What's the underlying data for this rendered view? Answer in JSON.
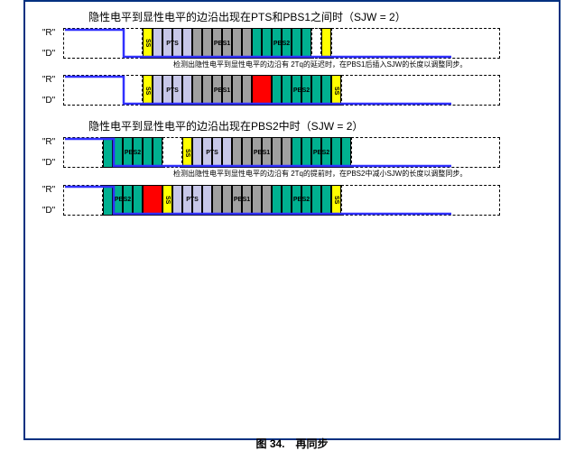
{
  "figure_caption": "图 34.　再同步",
  "section1": {
    "title": "隐性电平到显性电平的边沿出现在PTS和PBS1之间时（SJW = 2）"
  },
  "section2": {
    "title": "隐性电平到显性电平的边沿出现在PBS2中时（SJW = 2）"
  },
  "labels": {
    "R": "\"R\"",
    "D": "\"D\"",
    "SS": "SS",
    "PTS": "PTS",
    "PBS1": "PBS1",
    "PBS2": "PBS2"
  },
  "note1": "检测出隐性电平到显性电平的边沿有 2Tq的延迟时，在PBS1后插入SJW的长度以调整同步。",
  "note2": "检测出隐性电平到显性电平的边沿有 2Tq的提前时，在PBS2中减小SJW的长度以调整同步。",
  "sizes": {
    "tq_w": 11
  },
  "colors": {
    "ss": "#ffff00",
    "pts": "#c7c7e8",
    "pbs1": "#a0a0a0",
    "pbs2": "#00b090",
    "empty": "#ffffff",
    "sjw_ins": "#ff0000",
    "wave": "#3030ff"
  }
}
